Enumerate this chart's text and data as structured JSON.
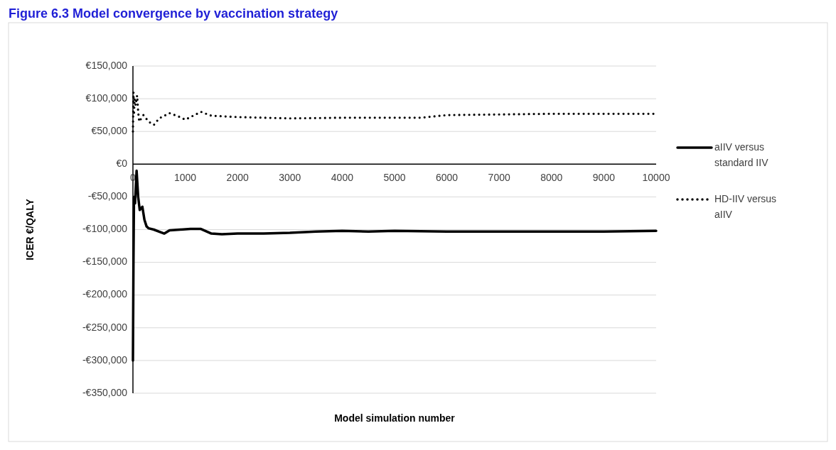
{
  "chart_data": {
    "type": "line",
    "title": "Figure 6.3 Model convergence by vaccination strategy",
    "xlabel": "Model simulation number",
    "ylabel": "ICER €/QALY",
    "xlim": [
      0,
      10000
    ],
    "xticks": [
      0,
      1000,
      2000,
      3000,
      4000,
      5000,
      6000,
      7000,
      8000,
      9000,
      10000
    ],
    "ylim": [
      -350000,
      150000
    ],
    "yticks": [
      {
        "value": -350000,
        "label": "-€350,000"
      },
      {
        "value": -300000,
        "label": "-€300,000"
      },
      {
        "value": -250000,
        "label": "-€250,000"
      },
      {
        "value": -200000,
        "label": "-€200,000"
      },
      {
        "value": -150000,
        "label": "-€150,000"
      },
      {
        "value": -100000,
        "label": "-€100,000"
      },
      {
        "value": -50000,
        "label": "-€50,000"
      },
      {
        "value": 0,
        "label": "€0"
      },
      {
        "value": 50000,
        "label": "€50,000"
      },
      {
        "value": 100000,
        "label": "€100,000"
      },
      {
        "value": 150000,
        "label": "€150,000"
      }
    ],
    "grid": "y",
    "legend": "right",
    "series": [
      {
        "name": "aIIV versus standard IIV",
        "color": "#000000",
        "line_style": "solid",
        "x": [
          0,
          10,
          20,
          40,
          70,
          100,
          130,
          180,
          220,
          260,
          300,
          400,
          500,
          600,
          700,
          900,
          1100,
          1300,
          1500,
          1700,
          2000,
          2500,
          3000,
          3500,
          4000,
          4500,
          5000,
          6000,
          7000,
          8000,
          9000,
          10000
        ],
        "values": [
          -300000,
          -150000,
          -50000,
          -60000,
          -10000,
          -50000,
          -70000,
          -65000,
          -85000,
          -95000,
          -98000,
          -100000,
          -103000,
          -106000,
          -101000,
          -100000,
          -99000,
          -99000,
          -106000,
          -107000,
          -106000,
          -106000,
          -105000,
          -103000,
          -102000,
          -103000,
          -102000,
          -103000,
          -103000,
          -103000,
          -103000,
          -102000
        ]
      },
      {
        "name": "HD-IIV versus aIIV",
        "color": "#000000",
        "line_style": "dotted",
        "x": [
          0,
          10,
          20,
          30,
          50,
          80,
          100,
          120,
          200,
          300,
          400,
          500,
          700,
          900,
          1000,
          1300,
          1500,
          2000,
          3000,
          4000,
          5000,
          5500,
          6000,
          7000,
          8000,
          10000
        ],
        "values": [
          50000,
          110000,
          75000,
          100000,
          90000,
          105000,
          80000,
          65000,
          75000,
          65000,
          60000,
          70000,
          78000,
          72000,
          68000,
          80000,
          74000,
          72000,
          70000,
          71000,
          71000,
          71000,
          75000,
          76000,
          77000,
          77000
        ]
      }
    ]
  }
}
